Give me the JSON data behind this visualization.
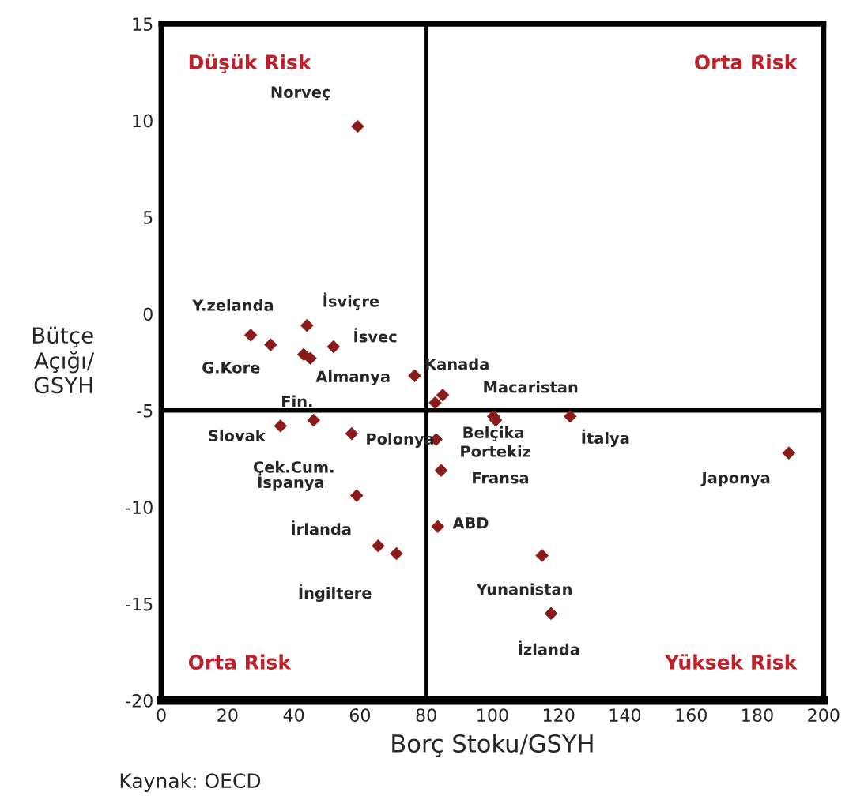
{
  "chart_data": {
    "type": "scatter",
    "xlabel": "Borç Stoku/GSYH",
    "ylabel": "Bütçe\nAçığı/\nGSYH",
    "x": [
      59.3,
      27,
      44,
      33,
      43,
      45,
      52,
      76.5,
      82.7,
      85,
      36,
      46,
      57.5,
      59,
      65.5,
      71,
      83,
      84.5,
      83.5,
      100.3,
      101,
      123.5,
      189.5,
      115,
      117.7
    ],
    "series": [
      {
        "color": "#8b1a1a",
        "values": [
          9.7,
          -1.1,
          -0.6,
          -1.6,
          -2.1,
          -2.3,
          -1.7,
          -3.2,
          -4.6,
          -4.2,
          -5.8,
          -5.5,
          -6.2,
          -9.4,
          -12.0,
          -12.4,
          -6.5,
          -8.1,
          -11.0,
          -5.3,
          -5.5,
          -5.3,
          -7.2,
          -12.5,
          -15.5
        ]
      }
    ],
    "marker": "diamond",
    "xlim": [
      0,
      200
    ],
    "ylim": [
      -20,
      15
    ],
    "xticks": [
      0,
      20,
      40,
      60,
      80,
      100,
      120,
      140,
      160,
      180,
      200
    ],
    "yticks": [
      -20,
      -15,
      -10,
      -5,
      0,
      5,
      10,
      15
    ],
    "grid": false,
    "ref_lines": [
      {
        "axis": "x",
        "value": 80,
        "color": "#000000"
      },
      {
        "axis": "y",
        "value": -5,
        "color": "#000000"
      }
    ],
    "annotations": [
      {
        "text": "Norveç",
        "x": 59.3,
        "y": 9.7
      },
      {
        "text": "Y.zelanda",
        "x": 27,
        "y": -1.1
      },
      {
        "text": "İsviçre",
        "x": 44,
        "y": -0.6
      },
      {
        "text": "G.Kore",
        "x": 33,
        "y": -1.6
      },
      {
        "text": "İsvec",
        "x": 52,
        "y": -1.7
      },
      {
        "text": "Almanya",
        "x": 76.5,
        "y": -3.2
      },
      {
        "text": "Kanada",
        "x": 82.7,
        "y": -4.6
      },
      {
        "text": "Macaristan",
        "x": 85,
        "y": -4.2
      },
      {
        "text": "Fin.",
        "x": 43,
        "y": -2.1
      },
      {
        "text": "Slovak",
        "x": 36,
        "y": -5.8
      },
      {
        "text": "Çek.Cum.",
        "x": 46,
        "y": -5.5
      },
      {
        "text": "Polonya",
        "x": 57.5,
        "y": -6.2
      },
      {
        "text": "İspanya",
        "x": 59,
        "y": -9.4
      },
      {
        "text": "İrlanda",
        "x": 65.5,
        "y": -12.0
      },
      {
        "text": "İngiltere",
        "x": 71,
        "y": -12.4
      },
      {
        "text": "Portekiz",
        "x": 83,
        "y": -6.5
      },
      {
        "text": "Fransa",
        "x": 84.5,
        "y": -8.1
      },
      {
        "text": "ABD",
        "x": 83.5,
        "y": -11.0
      },
      {
        "text": "Belçika",
        "x": 100.3,
        "y": -5.3
      },
      {
        "text": "İtalya",
        "x": 123.5,
        "y": -5.3
      },
      {
        "text": "Japonya",
        "x": 189.5,
        "y": -7.2
      },
      {
        "text": "Yunanistan",
        "x": 115,
        "y": -12.5
      },
      {
        "text": "İzlanda",
        "x": 117.7,
        "y": -15.5
      },
      "Düşük Risk",
      "Orta Risk",
      "Orta Risk",
      "Yüksek Risk",
      "Kaynak: OECD"
    ]
  }
}
